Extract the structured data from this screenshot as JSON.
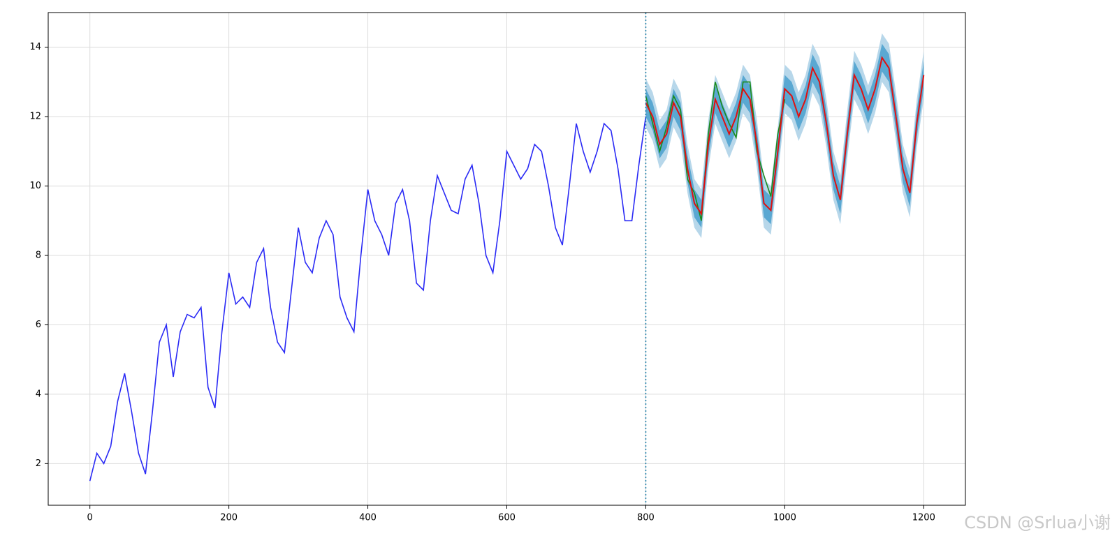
{
  "chart_data": {
    "type": "line",
    "xlim": [
      -60,
      1260
    ],
    "ylim": [
      0.8,
      15.0
    ],
    "xticks": [
      0,
      200,
      400,
      600,
      800,
      1000,
      1200
    ],
    "yticks": [
      2,
      4,
      6,
      8,
      10,
      12,
      14
    ],
    "grid": true,
    "vline": {
      "x": 800,
      "color": "#1f7fa8"
    },
    "bands": [
      {
        "color": "#b7d7ea",
        "x": [
          800,
          810,
          820,
          830,
          840,
          850,
          860,
          870,
          880,
          890,
          900,
          910,
          920,
          930,
          940,
          950,
          960,
          970,
          980,
          990,
          1000,
          1010,
          1020,
          1030,
          1040,
          1050,
          1060,
          1070,
          1080,
          1090,
          1100,
          1110,
          1120,
          1130,
          1140,
          1150,
          1160,
          1170,
          1180,
          1190,
          1200
        ],
        "lower": [
          11.7,
          11.3,
          10.5,
          10.8,
          11.7,
          11.3,
          9.8,
          8.8,
          8.5,
          10.5,
          11.8,
          11.3,
          10.8,
          11.3,
          12.1,
          11.8,
          10.5,
          8.8,
          8.6,
          10.3,
          12.1,
          11.9,
          11.3,
          11.8,
          12.7,
          12.3,
          11.1,
          9.6,
          8.9,
          10.8,
          12.5,
          12.1,
          11.5,
          12.1,
          13.0,
          12.7,
          11.3,
          9.8,
          9.1,
          11.1,
          12.5
        ],
        "upper": [
          13.1,
          12.7,
          11.9,
          12.2,
          13.1,
          12.7,
          11.2,
          10.2,
          9.9,
          11.9,
          13.2,
          12.7,
          12.2,
          12.7,
          13.5,
          13.2,
          11.9,
          10.2,
          10.0,
          11.7,
          13.5,
          13.3,
          12.7,
          13.2,
          14.1,
          13.7,
          12.5,
          11.0,
          10.3,
          12.2,
          13.9,
          13.5,
          12.9,
          13.5,
          14.4,
          14.1,
          12.7,
          11.2,
          10.5,
          12.5,
          13.9
        ]
      },
      {
        "color": "#5aa8d2",
        "x": [
          800,
          810,
          820,
          830,
          840,
          850,
          860,
          870,
          880,
          890,
          900,
          910,
          920,
          930,
          940,
          950,
          960,
          970,
          980,
          990,
          1000,
          1010,
          1020,
          1030,
          1040,
          1050,
          1060,
          1070,
          1080,
          1090,
          1100,
          1110,
          1120,
          1130,
          1140,
          1150,
          1160,
          1170,
          1180,
          1190,
          1200
        ],
        "lower": [
          12.0,
          11.6,
          10.8,
          11.1,
          12.0,
          11.6,
          10.1,
          9.1,
          8.8,
          10.8,
          12.1,
          11.6,
          11.1,
          11.6,
          12.4,
          12.1,
          10.8,
          9.1,
          8.9,
          10.6,
          12.4,
          12.2,
          11.6,
          12.1,
          13.0,
          12.6,
          11.4,
          9.9,
          9.2,
          11.1,
          12.8,
          12.4,
          11.8,
          12.4,
          13.3,
          13.0,
          11.6,
          10.1,
          9.4,
          11.4,
          12.8
        ],
        "upper": [
          12.8,
          12.4,
          11.6,
          11.9,
          12.8,
          12.4,
          10.9,
          9.9,
          9.6,
          11.6,
          12.9,
          12.4,
          11.9,
          12.4,
          13.2,
          12.9,
          11.6,
          9.9,
          9.7,
          11.4,
          13.2,
          13.0,
          12.4,
          12.9,
          13.8,
          13.4,
          12.2,
          10.7,
          10.0,
          11.9,
          13.6,
          13.2,
          12.6,
          13.2,
          14.1,
          13.8,
          12.4,
          10.9,
          10.2,
          12.2,
          13.6
        ]
      }
    ],
    "series": [
      {
        "color": "#2a2af5",
        "x": [
          0,
          10,
          20,
          30,
          40,
          50,
          60,
          70,
          80,
          90,
          100,
          110,
          120,
          130,
          140,
          150,
          160,
          170,
          180,
          190,
          200,
          210,
          220,
          230,
          240,
          250,
          260,
          270,
          280,
          290,
          300,
          310,
          320,
          330,
          340,
          350,
          360,
          370,
          380,
          390,
          400,
          410,
          420,
          430,
          440,
          450,
          460,
          470,
          480,
          490,
          500,
          510,
          520,
          530,
          540,
          550,
          560,
          570,
          580,
          590,
          600,
          610,
          620,
          630,
          640,
          650,
          660,
          670,
          680,
          690,
          700,
          710,
          720,
          730,
          740,
          750,
          760,
          770,
          780,
          790,
          800
        ],
        "values": [
          1.5,
          2.3,
          2.0,
          2.5,
          3.8,
          4.6,
          3.5,
          2.3,
          1.7,
          3.5,
          5.5,
          6.0,
          4.5,
          5.8,
          6.3,
          6.2,
          6.5,
          4.2,
          3.6,
          5.8,
          7.5,
          6.6,
          6.8,
          6.5,
          7.8,
          8.2,
          6.5,
          5.5,
          5.2,
          7.0,
          8.8,
          7.8,
          7.5,
          8.5,
          9.0,
          8.6,
          6.8,
          6.2,
          5.8,
          8.0,
          9.9,
          9.0,
          8.6,
          8.0,
          9.5,
          9.9,
          9.0,
          7.2,
          7.0,
          9.0,
          10.3,
          9.8,
          9.3,
          9.2,
          10.2,
          10.6,
          9.5,
          8.0,
          7.5,
          9.0,
          11.0,
          10.6,
          10.2,
          10.5,
          11.2,
          11.0,
          10.0,
          8.8,
          8.3,
          10.0,
          11.8,
          11.0,
          10.4,
          11.0,
          11.8,
          11.6,
          10.5,
          9.0,
          9.0,
          10.6,
          12.0
        ]
      },
      {
        "color": "#1a8a1a",
        "x": [
          800,
          810,
          820,
          830,
          840,
          850,
          860,
          870,
          880,
          890,
          900,
          910,
          920,
          930,
          940,
          950,
          960,
          970,
          980,
          990,
          1000
        ],
        "values": [
          12.6,
          11.8,
          11.0,
          11.7,
          12.6,
          12.2,
          10.2,
          9.8,
          9.0,
          11.5,
          13.0,
          12.3,
          11.8,
          11.4,
          13.0,
          13.0,
          11.0,
          10.3,
          9.7,
          11.5,
          12.5
        ]
      },
      {
        "color": "#e01010",
        "x": [
          800,
          810,
          820,
          830,
          840,
          850,
          860,
          870,
          880,
          890,
          900,
          910,
          920,
          930,
          940,
          950,
          960,
          970,
          980,
          990,
          1000,
          1010,
          1020,
          1030,
          1040,
          1050,
          1060,
          1070,
          1080,
          1090,
          1100,
          1110,
          1120,
          1130,
          1140,
          1150,
          1160,
          1170,
          1180,
          1190,
          1200
        ],
        "values": [
          12.4,
          12.0,
          11.2,
          11.5,
          12.4,
          12.0,
          10.5,
          9.5,
          9.2,
          11.2,
          12.5,
          12.0,
          11.5,
          12.0,
          12.8,
          12.5,
          11.2,
          9.5,
          9.3,
          11.0,
          12.8,
          12.6,
          12.0,
          12.5,
          13.4,
          13.0,
          11.8,
          10.3,
          9.6,
          11.5,
          13.2,
          12.8,
          12.2,
          12.8,
          13.7,
          13.4,
          12.0,
          10.5,
          9.8,
          11.8,
          13.2
        ]
      }
    ]
  },
  "watermark": "CSDN @Srlua小谢"
}
